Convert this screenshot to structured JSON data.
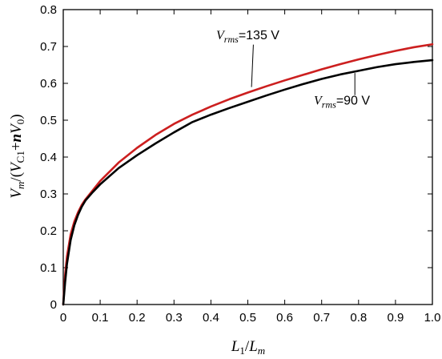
{
  "chart_data": {
    "type": "line",
    "title": "",
    "xlabel": {
      "base": "L",
      "sub1": "1",
      "mid": "/",
      "base2": "L",
      "sub2": "m"
    },
    "ylabel": {
      "base": "V",
      "sub": "m",
      "rest1": "/(",
      "v2": "V",
      "sub2": "C1",
      "plus": "+",
      "n": "n",
      "v3": "V",
      "sub3": "0",
      "close": ")"
    },
    "xlim": [
      0,
      1
    ],
    "ylim": [
      0,
      0.8
    ],
    "x_ticks": [
      "0",
      "0.1",
      "0.2",
      "0.3",
      "0.4",
      "0.5",
      "0.6",
      "0.7",
      "0.8",
      "0.9",
      "1.0"
    ],
    "y_ticks": [
      "0",
      "0.1",
      "0.2",
      "0.3",
      "0.4",
      "0.5",
      "0.6",
      "0.7",
      "0.8"
    ],
    "grid": false,
    "series": [
      {
        "name": "Vrms=135 V",
        "color": "#cc1f1f",
        "x": [
          0.0,
          0.005,
          0.01,
          0.02,
          0.03,
          0.04,
          0.05,
          0.06,
          0.08,
          0.1,
          0.15,
          0.2,
          0.25,
          0.3,
          0.35,
          0.4,
          0.45,
          0.5,
          0.55,
          0.6,
          0.65,
          0.7,
          0.75,
          0.8,
          0.85,
          0.9,
          0.95,
          1.0
        ],
        "y": [
          0.0,
          0.08,
          0.13,
          0.19,
          0.225,
          0.25,
          0.27,
          0.285,
          0.31,
          0.335,
          0.385,
          0.425,
          0.46,
          0.49,
          0.515,
          0.537,
          0.557,
          0.575,
          0.592,
          0.608,
          0.623,
          0.638,
          0.652,
          0.665,
          0.677,
          0.688,
          0.698,
          0.706
        ]
      },
      {
        "name": "Vrms=90 V",
        "color": "#000000",
        "x": [
          0.0,
          0.005,
          0.01,
          0.02,
          0.03,
          0.04,
          0.05,
          0.06,
          0.08,
          0.1,
          0.15,
          0.2,
          0.25,
          0.3,
          0.35,
          0.4,
          0.45,
          0.5,
          0.55,
          0.6,
          0.65,
          0.7,
          0.75,
          0.8,
          0.85,
          0.9,
          0.95,
          1.0
        ],
        "y": [
          0.0,
          0.06,
          0.11,
          0.175,
          0.215,
          0.243,
          0.265,
          0.282,
          0.305,
          0.326,
          0.37,
          0.405,
          0.437,
          0.467,
          0.495,
          0.515,
          0.533,
          0.55,
          0.567,
          0.583,
          0.598,
          0.612,
          0.624,
          0.634,
          0.644,
          0.652,
          0.658,
          0.663
        ]
      }
    ],
    "annotations": [
      {
        "id": "ann135",
        "base": "V",
        "sub": "rms",
        "rest": "=135 V",
        "x": 0.5,
        "y": 0.72
      },
      {
        "id": "ann90",
        "base": "V",
        "sub": "rms",
        "rest": "=90 V",
        "x": 0.755,
        "y": 0.542
      }
    ]
  }
}
